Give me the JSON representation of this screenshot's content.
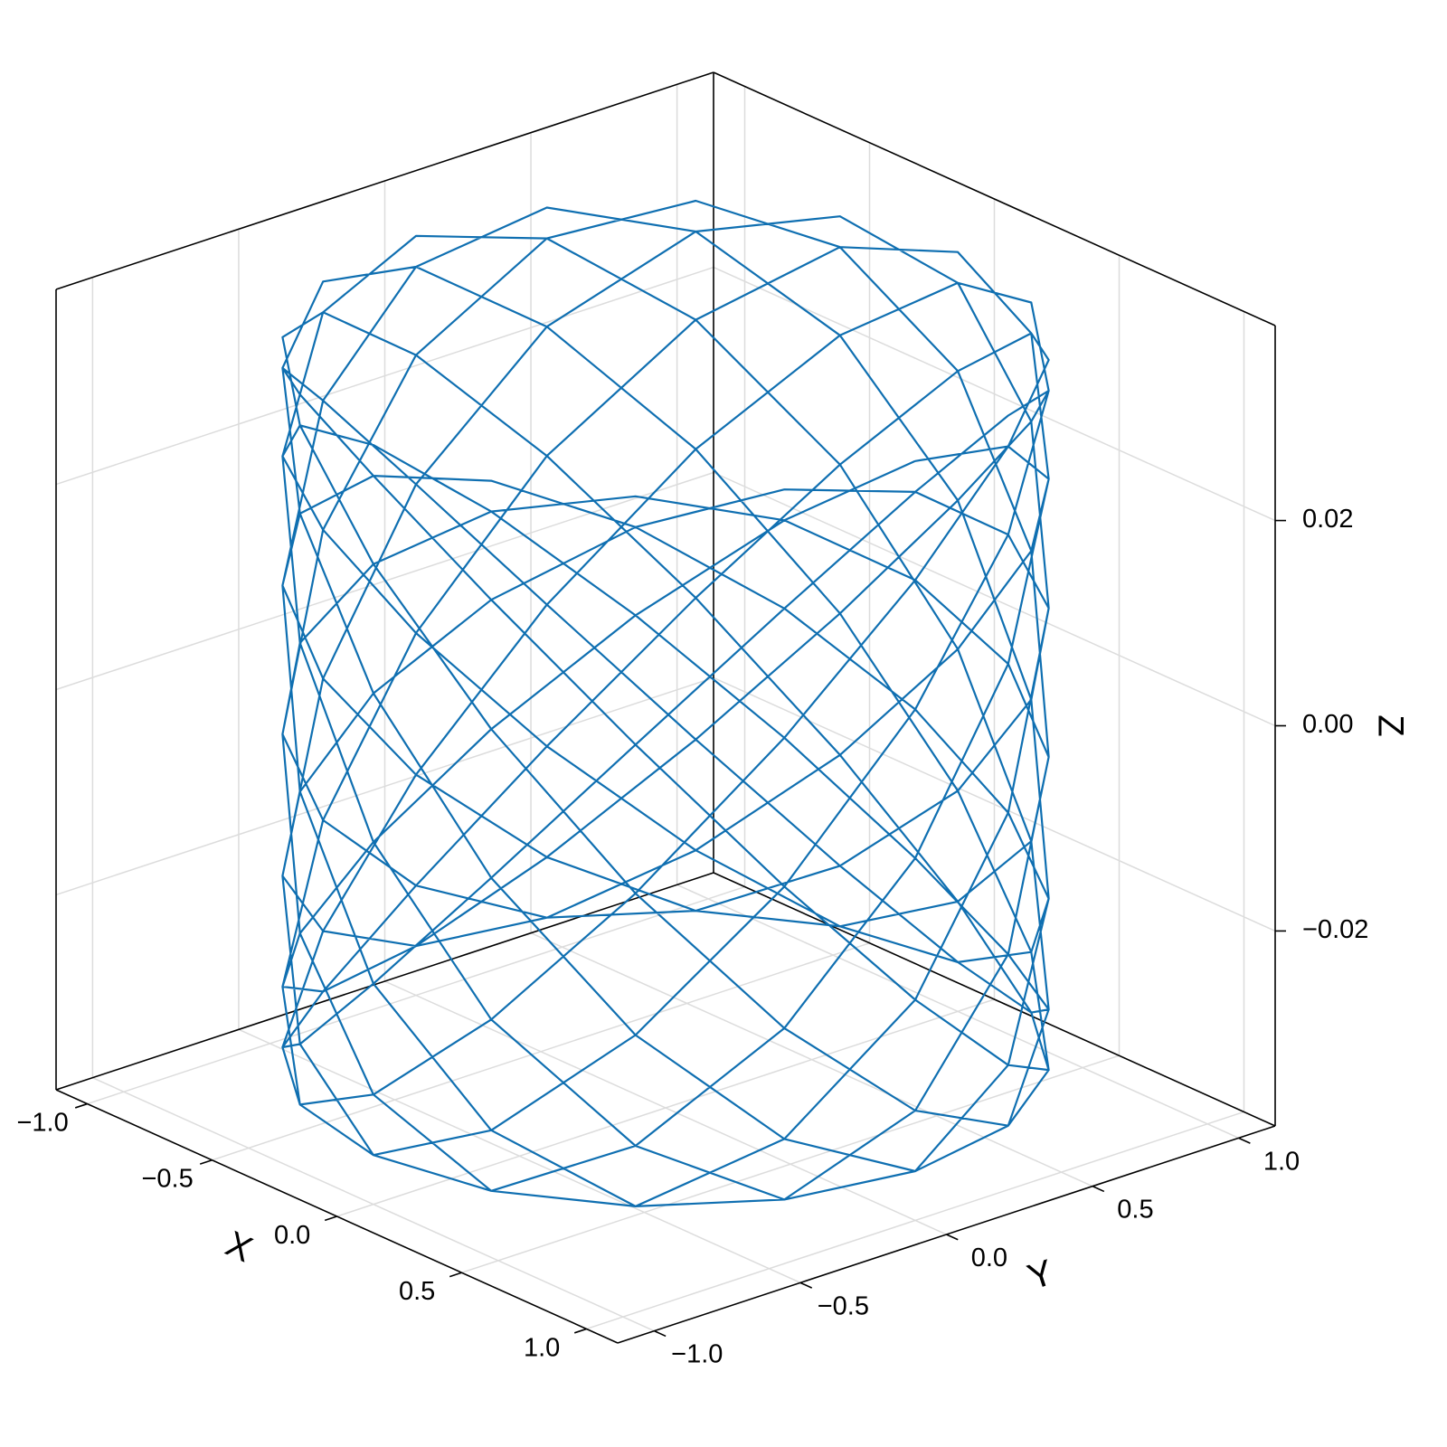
{
  "chart_data": {
    "type": "line3d",
    "xlabel": "X",
    "ylabel": "Y",
    "zlabel": "Z",
    "xlim": [
      -1.125,
      1.125
    ],
    "ylim": [
      -1.125,
      1.125
    ],
    "zlim": [
      -0.039,
      0.039
    ],
    "xticks": [
      {
        "value": -1,
        "label": "−1.0"
      },
      {
        "value": -0.5,
        "label": "−0.5"
      },
      {
        "value": 0,
        "label": "0.0"
      },
      {
        "value": 0.5,
        "label": "0.5"
      },
      {
        "value": 1,
        "label": "1.0"
      }
    ],
    "yticks": [
      {
        "value": -1,
        "label": "−1.0"
      },
      {
        "value": -0.5,
        "label": "−0.5"
      },
      {
        "value": 0,
        "label": "0.0"
      },
      {
        "value": 0.5,
        "label": "0.5"
      },
      {
        "value": 1,
        "label": "1.0"
      }
    ],
    "zticks": [
      {
        "value": -0.02,
        "label": "−0.02"
      },
      {
        "value": 0,
        "label": "0.00"
      },
      {
        "value": 0.02,
        "label": "0.02"
      }
    ],
    "grid": true,
    "series": [
      {
        "color": "#0f6fb1",
        "x": [
          1,
          0.924,
          0.707,
          0.383,
          0,
          -0.383,
          -0.707,
          -0.924,
          -1,
          -0.924,
          -0.707,
          -0.383,
          0,
          0.383,
          0.707,
          0.924,
          1,
          0.924,
          0.707,
          0.383,
          0,
          -0.383,
          -0.707,
          -0.924,
          -1,
          -0.924,
          -0.707,
          -0.383,
          0,
          0.383,
          0.707,
          0.924,
          1,
          0.924,
          0.707,
          0.383,
          0,
          -0.383,
          -0.707,
          -0.924,
          -1,
          -0.924,
          -0.707,
          -0.383,
          0,
          0.383,
          0.707,
          0.924,
          1,
          0.924,
          0.707,
          0.383,
          0,
          -0.383,
          -0.707,
          -0.924,
          -1,
          -0.924,
          -0.707,
          -0.383,
          0,
          0.383,
          0.707,
          0.924,
          1,
          0.924,
          0.707,
          0.383,
          0,
          -0.383,
          -0.707,
          -0.924,
          -1,
          -0.924,
          -0.707,
          -0.383,
          0,
          0.383,
          0.707,
          0.924,
          1,
          0.924,
          0.707,
          0.383,
          0,
          -0.383,
          -0.707,
          -0.924,
          -1,
          -0.924,
          -0.707,
          -0.383,
          0,
          0.383,
          0.707,
          0.924,
          1,
          0.924,
          0.707,
          0.383,
          0,
          -0.383,
          -0.707,
          -0.924,
          -1,
          -0.924,
          -0.707,
          -0.383,
          0,
          0.383,
          0.707,
          0.924,
          1,
          0.924,
          0.707,
          0.383,
          0,
          -0.383,
          -0.707,
          -0.924,
          -1,
          -0.924,
          -0.707,
          -0.383,
          0,
          0.383,
          0.707,
          0.924,
          1,
          0.924,
          0.707,
          0.383,
          0,
          -0.383,
          -0.707,
          -0.924,
          -1,
          -0.924,
          -0.707,
          -0.383,
          0,
          0.383,
          0.707,
          0.924,
          1,
          0.924,
          0.707,
          0.383,
          0,
          -0.383,
          -0.707,
          -0.924,
          -1,
          -0.924,
          -0.707,
          -0.383,
          0,
          0.383,
          0.707,
          0.924,
          1,
          0.924,
          0.707,
          0.383,
          0,
          -0.383,
          -0.707,
          -0.924,
          -1,
          -0.924,
          -0.707,
          -0.383,
          0,
          0.383,
          0.707,
          0.924,
          1,
          0.924,
          0.707,
          0.383,
          0,
          -0.383,
          -0.707,
          -0.924,
          -1,
          -0.924,
          -0.707,
          -0.383,
          0,
          0.383,
          0.707,
          0.924,
          1,
          0.924,
          0.707,
          0.383,
          0,
          -0.383,
          -0.707,
          -0.924,
          -1,
          -0.924,
          -0.707,
          -0.383,
          0,
          0.383,
          0.707,
          0.924,
          1,
          0.924,
          0.707,
          0.383,
          0,
          -0.383,
          -0.707,
          -0.924,
          -1,
          -0.924,
          -0.707,
          -0.383,
          0,
          0.383,
          0.707,
          0.924,
          1,
          0.924,
          0.707,
          0.383,
          0,
          -0.383,
          -0.707,
          -0.924,
          -1,
          -0.924,
          -0.707,
          -0.383,
          0,
          0.383,
          0.707,
          0.924,
          1
        ],
        "y": [
          0,
          0.383,
          0.707,
          0.924,
          1,
          0.924,
          0.707,
          0.383,
          0,
          -0.383,
          -0.707,
          -0.924,
          -1,
          -0.924,
          -0.707,
          -0.383,
          0,
          0.383,
          0.707,
          0.924,
          1,
          0.924,
          0.707,
          0.383,
          0,
          -0.383,
          -0.707,
          -0.924,
          -1,
          -0.924,
          -0.707,
          -0.383,
          0,
          0.383,
          0.707,
          0.924,
          1,
          0.924,
          0.707,
          0.383,
          0,
          -0.383,
          -0.707,
          -0.924,
          -1,
          -0.924,
          -0.707,
          -0.383,
          0,
          0.383,
          0.707,
          0.924,
          1,
          0.924,
          0.707,
          0.383,
          0,
          -0.383,
          -0.707,
          -0.924,
          -1,
          -0.924,
          -0.707,
          -0.383,
          0,
          0.383,
          0.707,
          0.924,
          1,
          0.924,
          0.707,
          0.383,
          0,
          -0.383,
          -0.707,
          -0.924,
          -1,
          -0.924,
          -0.707,
          -0.383,
          0,
          0.383,
          0.707,
          0.924,
          1,
          0.924,
          0.707,
          0.383,
          0,
          -0.383,
          -0.707,
          -0.924,
          -1,
          -0.924,
          -0.707,
          -0.383,
          0,
          0.383,
          0.707,
          0.924,
          1,
          0.924,
          0.707,
          0.383,
          0,
          -0.383,
          -0.707,
          -0.924,
          -1,
          -0.924,
          -0.707,
          -0.383,
          0,
          0.383,
          0.707,
          0.924,
          1,
          0.924,
          0.707,
          0.383,
          0,
          -0.383,
          -0.707,
          -0.924,
          -1,
          -0.924,
          -0.707,
          -0.383,
          0,
          0.383,
          0.707,
          0.924,
          1,
          0.924,
          0.707,
          0.383,
          0,
          -0.383,
          -0.707,
          -0.924,
          -1,
          -0.924,
          -0.707,
          -0.383,
          0,
          0.383,
          0.707,
          0.924,
          1,
          0.924,
          0.707,
          0.383,
          0,
          -0.383,
          -0.707,
          -0.924,
          -1,
          -0.924,
          -0.707,
          -0.383,
          0,
          0.383,
          0.707,
          0.924,
          1,
          0.924,
          0.707,
          0.383,
          0,
          -0.383,
          -0.707,
          -0.924,
          -1,
          -0.924,
          -0.707,
          -0.383,
          0,
          0.383,
          0.707,
          0.924,
          1,
          0.924,
          0.707,
          0.383,
          0,
          -0.383,
          -0.707,
          -0.924,
          -1,
          -0.924,
          -0.707,
          -0.383,
          0,
          0.383,
          0.707,
          0.924,
          1,
          0.924,
          0.707,
          0.383,
          0,
          -0.383,
          -0.707,
          -0.924,
          -1,
          -0.924,
          -0.707,
          -0.383,
          0,
          0.383,
          0.707,
          0.924,
          1,
          0.924,
          0.707,
          0.383,
          0,
          -0.383,
          -0.707,
          -0.924,
          -1,
          -0.924,
          -0.707,
          -0.383,
          0,
          0.383,
          0.707,
          0.924,
          1,
          0.924,
          0.707,
          0.383,
          0,
          -0.383,
          -0.707,
          -0.924,
          -1,
          -0.924,
          -0.707,
          -0.383,
          0
        ],
        "z": [
          0.035,
          0.032,
          0.0234,
          0.0108,
          -0.0037,
          -0.0175,
          -0.0283,
          -0.0342,
          -0.0342,
          -0.0283,
          -0.0175,
          -0.0037,
          0.0108,
          0.0234,
          0.032,
          0.035,
          0.032,
          0.0234,
          0.0108,
          -0.0037,
          -0.0175,
          -0.0283,
          -0.0342,
          -0.0342,
          -0.0283,
          -0.0175,
          -0.0037,
          0.0108,
          0.0234,
          0.032,
          0.035,
          0.032,
          0.0234,
          0.0108,
          -0.0037,
          -0.0175,
          -0.0283,
          -0.0342,
          -0.0342,
          -0.0283,
          -0.0175,
          -0.0037,
          0.0108,
          0.0234,
          0.032,
          0.035,
          0.032,
          0.0234,
          0.0108,
          -0.0037,
          -0.0175,
          -0.0283,
          -0.0342,
          -0.0342,
          -0.0283,
          -0.0175,
          -0.0037,
          0.0108,
          0.0234,
          0.032,
          0.035,
          0.032,
          0.0234,
          0.0108,
          -0.0037,
          -0.0175,
          -0.0283,
          -0.0342,
          -0.0342,
          -0.0283,
          -0.0175,
          -0.0037,
          0.0108,
          0.0234,
          0.032,
          0.035,
          0.032,
          0.0234,
          0.0108,
          -0.0037,
          -0.0175,
          -0.0283,
          -0.0342,
          -0.0342,
          -0.0283,
          -0.0175,
          -0.0037,
          0.0108,
          0.0234,
          0.032,
          0.035,
          0.032,
          0.0234,
          0.0108,
          -0.0037,
          -0.0175,
          -0.0283,
          -0.0342,
          -0.0342,
          -0.0283,
          -0.0175,
          -0.0037,
          0.0108,
          0.0234,
          0.032,
          0.035,
          0.032,
          0.0234,
          0.0108,
          -0.0037,
          -0.0175,
          -0.0283,
          -0.0342,
          -0.0342,
          -0.0283,
          -0.0175,
          -0.0037,
          0.0108,
          0.0234,
          0.032,
          0.035,
          0.032,
          0.0234,
          0.0108,
          -0.0037,
          -0.0175,
          -0.0283,
          -0.0342,
          -0.0342,
          -0.0283,
          -0.0175,
          -0.0037,
          0.0108,
          0.0234,
          0.032,
          0.035,
          0.032,
          0.0234,
          0.0108,
          -0.0037,
          -0.0175,
          -0.0283,
          -0.0342,
          -0.0342,
          -0.0283,
          -0.0175,
          -0.0037,
          0.0108,
          0.0234,
          0.032,
          0.035,
          0.032,
          0.0234,
          0.0108,
          -0.0037,
          -0.0175,
          -0.0283,
          -0.0342,
          -0.0342,
          -0.0283,
          -0.0175,
          -0.0037,
          0.0108,
          0.0234,
          0.032,
          0.035,
          0.032,
          0.0234,
          0.0108,
          -0.0037,
          -0.0175,
          -0.0283,
          -0.0342,
          -0.0342,
          -0.0283,
          -0.0175,
          -0.0037,
          0.0108,
          0.0234,
          0.032,
          0.035,
          0.032,
          0.0234,
          0.0108,
          -0.0037,
          -0.0175,
          -0.0283,
          -0.0342,
          -0.0342,
          -0.0283,
          -0.0175,
          -0.0037,
          0.0108,
          0.0234,
          0.032,
          0.035,
          0.032,
          0.0234,
          0.0108,
          -0.0037,
          -0.0175,
          -0.0283,
          -0.0342,
          -0.0342,
          -0.0283,
          -0.0175,
          -0.0037,
          0.0108,
          0.0234,
          0.032,
          0.035,
          0.032,
          0.0234,
          0.0108,
          -0.0037,
          -0.0175,
          -0.0283,
          -0.0342,
          -0.0342,
          -0.0283,
          -0.0175,
          -0.0037,
          0.0108,
          0.0234,
          0.032,
          0.035,
          0.032,
          0.0234,
          0.0108,
          -0.0037,
          -0.0175,
          -0.0283,
          -0.0342,
          -0.0342,
          -0.0283,
          -0.0175,
          -0.0037,
          0.0108,
          0.0234,
          0.032,
          0.035
        ]
      }
    ]
  }
}
